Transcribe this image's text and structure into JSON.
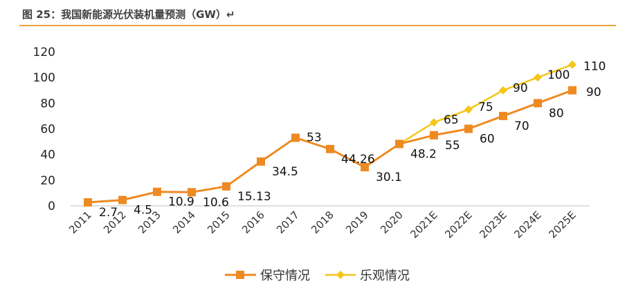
{
  "title": "图 25：我国新能源光伏装机量预测（GW）↵",
  "chart_data": {
    "type": "line",
    "title": "图 25：我国新能源光伏装机量预测（GW）",
    "xlabel": "",
    "ylabel": "",
    "ylim": [
      0,
      120
    ],
    "yticks": [
      0,
      20,
      40,
      60,
      80,
      100,
      120
    ],
    "categories": [
      "2011",
      "2012",
      "2013",
      "2014",
      "2015",
      "2016",
      "2017",
      "2018",
      "2019",
      "2020",
      "2021E",
      "2022E",
      "2023E",
      "2024E",
      "2025E"
    ],
    "legend_position": "bottom",
    "grid": false,
    "series": [
      {
        "name": "保守情况",
        "color": "#EE8A22",
        "marker": "square",
        "values": [
          2.7,
          4.5,
          10.9,
          10.6,
          15.13,
          34.5,
          53,
          44.26,
          30.1,
          48.2,
          55,
          60,
          70,
          80,
          90
        ],
        "labels": [
          "2.7",
          "4.5",
          "10.9",
          "10.6",
          "15.13",
          "34.5",
          "53",
          "44.26",
          "30.1",
          "48.2",
          "55",
          "60",
          "70",
          "80",
          "90"
        ]
      },
      {
        "name": "乐观情况",
        "color": "#F5C518",
        "marker": "diamond",
        "start_index": 9,
        "values": [
          null,
          null,
          null,
          null,
          null,
          null,
          null,
          null,
          null,
          48.2,
          65,
          75,
          90,
          100,
          110
        ],
        "labels": [
          "",
          "",
          "",
          "",
          "",
          "",
          "",
          "",
          "",
          "",
          "65",
          "75",
          "90",
          "100",
          "110"
        ]
      }
    ]
  }
}
